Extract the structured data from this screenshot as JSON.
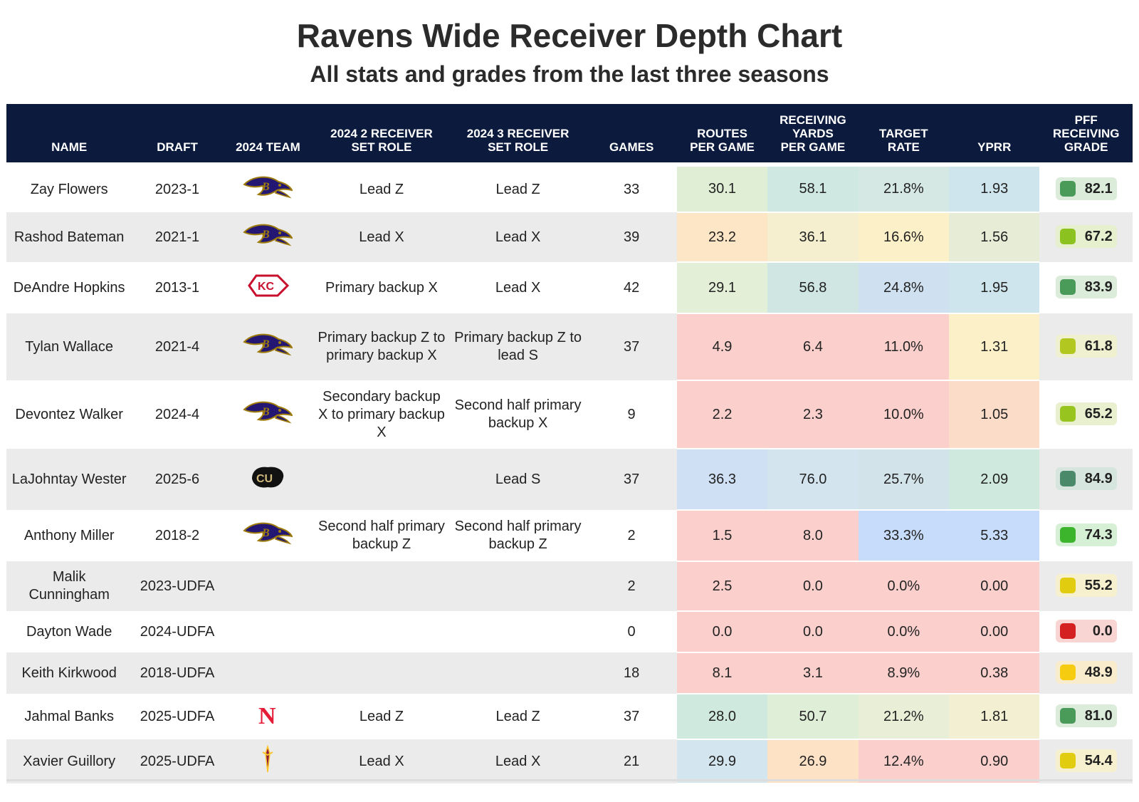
{
  "title": "Ravens Wide Receiver Depth Chart",
  "subtitle": "All stats and grades from the last three seasons",
  "chart_data": {
    "type": "table",
    "columns": [
      "NAME",
      "DRAFT",
      "2024 TEAM",
      "2024 2 RECEIVER SET ROLE",
      "2024 3 RECEIVER SET ROLE",
      "GAMES",
      "ROUTES PER GAME",
      "RECEIVING YARDS PER GAME",
      "TARGET RATE",
      "YPRR",
      "PFF RECEIVING GRADE"
    ],
    "column_headers": {
      "name": "NAME",
      "draft": "DRAFT",
      "team": "2024 TEAM",
      "role2": [
        "2024 2 RECEIVER",
        "SET ROLE"
      ],
      "role3": [
        "2024 3 RECEIVER",
        "SET ROLE"
      ],
      "games": "GAMES",
      "routes": [
        "ROUTES",
        "PER GAME"
      ],
      "yards": [
        "RECEIVING",
        "YARDS",
        "PER GAME"
      ],
      "target": [
        "TARGET",
        "RATE"
      ],
      "yprr": "YPRR",
      "grade": [
        "PFF",
        "RECEIVING",
        "GRADE"
      ]
    },
    "rows": [
      {
        "name": "Zay Flowers",
        "draft": "2023-1",
        "team_logo": "ravens-logo",
        "role2": "Lead Z",
        "role3": "Lead Z",
        "games": "33",
        "routes": "30.1",
        "yards": "58.1",
        "target": "21.8%",
        "yprr": "1.93",
        "grade": "82.1",
        "colors": {
          "routes": "#e0eed6",
          "yards": "#cfe8e2",
          "target": "#d6e8e4",
          "yprr": "#cfe5ee",
          "grade_bg": "#dcecda",
          "grade_dot": "#4a9a5a"
        }
      },
      {
        "name": "Rashod Bateman",
        "draft": "2021-1",
        "team_logo": "ravens-logo",
        "role2": "Lead X",
        "role3": "Lead X",
        "games": "39",
        "routes": "23.2",
        "yards": "36.1",
        "target": "16.6%",
        "yprr": "1.56",
        "grade": "67.2",
        "colors": {
          "routes": "#fde6c6",
          "yards": "#f5efcf",
          "target": "#fbf0c8",
          "yprr": "#e6ecd6",
          "grade_bg": "#e6f0cf",
          "grade_dot": "#8cc21f"
        }
      },
      {
        "name": "DeAndre Hopkins",
        "draft": "2013-1",
        "team_logo": "chiefs-logo",
        "role2": "Primary backup X",
        "role3": "Lead X",
        "games": "42",
        "routes": "29.1",
        "yards": "56.8",
        "target": "24.8%",
        "yprr": "1.95",
        "grade": "83.9",
        "colors": {
          "routes": "#e3efd6",
          "yards": "#cfe6e2",
          "target": "#cfe0f0",
          "yprr": "#cfe5ee",
          "grade_bg": "#dcecda",
          "grade_dot": "#4a9a5a"
        }
      },
      {
        "name": "Tylan Wallace",
        "draft": "2021-4",
        "team_logo": "ravens-logo",
        "role2": "Primary backup Z to primary backup X",
        "role3": "Primary backup Z to lead S",
        "games": "37",
        "routes": "4.9",
        "yards": "6.4",
        "target": "11.0%",
        "yprr": "1.31",
        "grade": "61.8",
        "colors": {
          "routes": "#fbd0cc",
          "yards": "#fbd0cc",
          "target": "#fbd0cc",
          "yprr": "#fbf0c8",
          "grade_bg": "#eef0cf",
          "grade_dot": "#b2c820"
        }
      },
      {
        "name": "Devontez Walker",
        "draft": "2024-4",
        "team_logo": "ravens-logo",
        "role2": "Secondary backup X to primary backup X",
        "role3": "Second half primary backup X",
        "games": "9",
        "routes": "2.2",
        "yards": "2.3",
        "target": "10.0%",
        "yprr": "1.05",
        "grade": "65.2",
        "colors": {
          "routes": "#fbd0cc",
          "yards": "#fbd0cc",
          "target": "#fbd0cc",
          "yprr": "#fbdcc8",
          "grade_bg": "#e8f0cf",
          "grade_dot": "#98c420"
        }
      },
      {
        "name": "LaJohntay Wester",
        "draft": "2025-6",
        "team_logo": "colorado-logo",
        "role2": "",
        "role3": "Lead S",
        "games": "37",
        "routes": "36.3",
        "yards": "76.0",
        "target": "25.7%",
        "yprr": "2.09",
        "grade": "84.9",
        "colors": {
          "routes": "#cfe0f4",
          "yards": "#d3e4ef",
          "target": "#d3e3ea",
          "yprr": "#cfe9df",
          "grade_bg": "#d6e6de",
          "grade_dot": "#4a8a6a"
        }
      },
      {
        "name": "Anthony Miller",
        "draft": "2018-2",
        "team_logo": "ravens-logo",
        "role2": "Second half primary backup Z",
        "role3": "Second half primary backup Z",
        "games": "2",
        "routes": "1.5",
        "yards": "8.0",
        "target": "33.3%",
        "yprr": "5.33",
        "grade": "74.3",
        "colors": {
          "routes": "#fbd0cc",
          "yards": "#fbd0cc",
          "target": "#c6dcfa",
          "yprr": "#c6dcfa",
          "grade_bg": "#d6f0d6",
          "grade_dot": "#3cb52c"
        }
      },
      {
        "name": "Malik Cunningham",
        "draft": "2023-UDFA",
        "team_logo": "",
        "role2": "",
        "role3": "",
        "games": "2",
        "routes": "2.5",
        "yards": "0.0",
        "target": "0.0%",
        "yprr": "0.00",
        "grade": "55.2",
        "colors": {
          "routes": "#fbd0cc",
          "yards": "#fbd0cc",
          "target": "#fbd0cc",
          "yprr": "#fbd0cc",
          "grade_bg": "#f6f0cf",
          "grade_dot": "#e2cc10"
        }
      },
      {
        "name": "Dayton Wade",
        "draft": "2024-UDFA",
        "team_logo": "",
        "role2": "",
        "role3": "",
        "games": "0",
        "routes": "0.0",
        "yards": "0.0",
        "target": "0.0%",
        "yprr": "0.00",
        "grade": "0.0",
        "colors": {
          "routes": "#fbd0cc",
          "yards": "#fbd0cc",
          "target": "#fbd0cc",
          "yprr": "#fbd0cc",
          "grade_bg": "#f8d4d2",
          "grade_dot": "#d42020"
        }
      },
      {
        "name": "Keith Kirkwood",
        "draft": "2018-UDFA",
        "team_logo": "",
        "role2": "",
        "role3": "",
        "games": "18",
        "routes": "8.1",
        "yards": "3.1",
        "target": "8.9%",
        "yprr": "0.38",
        "grade": "48.9",
        "colors": {
          "routes": "#fbd0cc",
          "yards": "#fbd0cc",
          "target": "#fbd0cc",
          "yprr": "#fbd0cc",
          "grade_bg": "#f8eccc",
          "grade_dot": "#f5cc10"
        }
      },
      {
        "name": "Jahmal Banks",
        "draft": "2025-UDFA",
        "team_logo": "nebraska-logo",
        "role2": "Lead Z",
        "role3": "Lead Z",
        "games": "37",
        "routes": "28.0",
        "yards": "50.7",
        "target": "21.2%",
        "yprr": "1.81",
        "grade": "81.0",
        "colors": {
          "routes": "#cfe9df",
          "yards": "#dfeed6",
          "target": "#e9eed6",
          "yprr": "#f3efd2",
          "grade_bg": "#dcecda",
          "grade_dot": "#4a9a5a"
        }
      },
      {
        "name": "Xavier Guillory",
        "draft": "2025-UDFA",
        "team_logo": "arizona-state-logo",
        "role2": "Lead X",
        "role3": "Lead X",
        "games": "21",
        "routes": "29.9",
        "yards": "26.9",
        "target": "12.4%",
        "yprr": "0.90",
        "grade": "54.4",
        "colors": {
          "routes": "#d3e6ef",
          "yards": "#fde2c6",
          "target": "#fbd0cc",
          "yprr": "#fbd0cc",
          "grade_bg": "#f6f0cf",
          "grade_dot": "#e2cc10"
        }
      }
    ]
  }
}
